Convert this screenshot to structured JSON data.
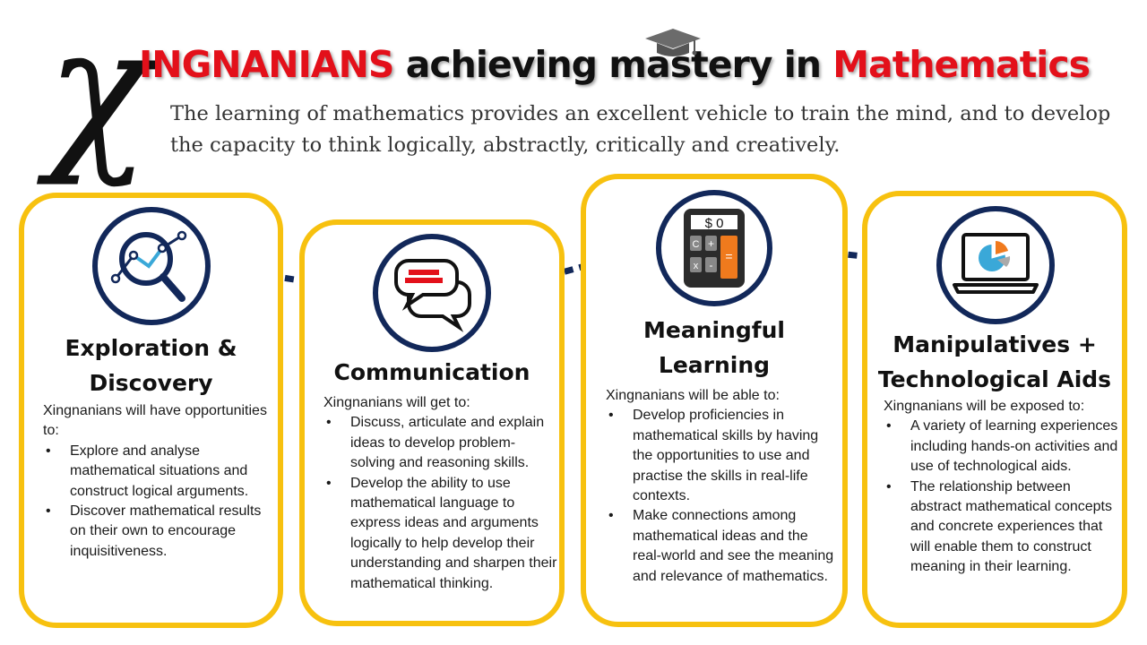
{
  "header": {
    "chi_letter": "χ",
    "title_red_1": "INGNANIANS",
    "title_black": " achieving mastery in ",
    "title_red_2": "Mathematics",
    "subtitle": "The learning of mathematics provides an excellent vehicle to train the mind, and to develop the capacity to think logically, abstractly, critically and creatively.",
    "cap_icon": "graduation-cap-icon"
  },
  "colors": {
    "accent_red": "#e3101a",
    "card_border": "#f7c10f",
    "icon_navy": "#12285a"
  },
  "cards": [
    {
      "icon": "magnifier-chart-icon",
      "title_lines": [
        "Exploration &",
        "Discovery"
      ],
      "intro": "Xingnanians will have opportunities to:",
      "bullets": [
        "Explore and analyse mathematical situations and construct logical arguments.",
        "Discover mathematical results on their own to encourage inquisitiveness."
      ]
    },
    {
      "icon": "speech-bubbles-icon",
      "title_lines": [
        "Communication"
      ],
      "intro": "Xingnanians will get to:",
      "bullets": [
        "Discuss, articulate and explain ideas to develop problem-solving and reasoning skills.",
        "Develop the ability to use mathematical language to express ideas and arguments logically to help develop their understanding and sharpen their mathematical thinking."
      ]
    },
    {
      "icon": "calculator-icon",
      "calculator_display": "$ 0",
      "title_lines": [
        "Meaningful",
        "Learning"
      ],
      "intro": "Xingnanians will be able to:",
      "bullets": [
        "Develop proficiencies in mathematical skills by having the opportunities to use and practise the skills in real-life contexts.",
        "Make connections among mathematical ideas and the real-world and see the meaning and relevance of mathematics."
      ]
    },
    {
      "icon": "laptop-pie-chart-icon",
      "title_lines": [
        "Manipulatives +",
        "Technological Aids"
      ],
      "intro": "Xingnanians will be exposed to:",
      "bullets": [
        "A variety of learning experiences including hands-on activities and use of technological aids.",
        "The relationship between abstract mathematical concepts and concrete experiences that will enable them to construct meaning in their learning."
      ]
    }
  ]
}
